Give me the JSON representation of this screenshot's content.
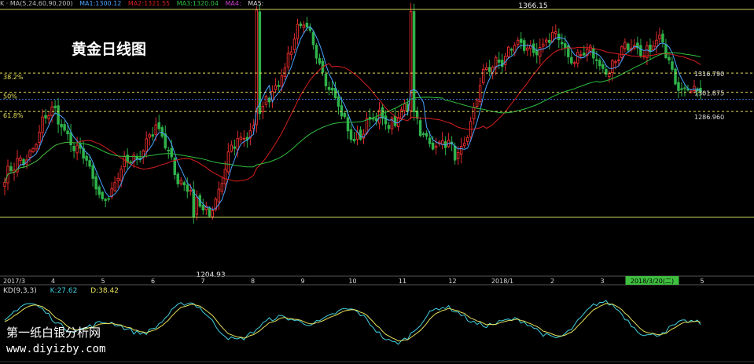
{
  "header": {
    "indicator": "K · MA(5,24,60,90,200)",
    "ma_labels": [
      "MA1:1300.12",
      "MA2:1321.55",
      "MA3:1320.04",
      "MA4:",
      "MA5:"
    ]
  },
  "title": "黄金日线图",
  "colors": {
    "background": "#000000",
    "up": "#e02b2b",
    "down": "#2fb24a",
    "ma1": "#4aa3ff",
    "ma2": "#d81e1e",
    "ma3": "#2fbf3f",
    "fib": "#e6e15a",
    "support": "#c8d25a",
    "current": "#3b6fd6",
    "kd_k": "#3fd0e0",
    "kd_d": "#e6e15a",
    "highlight": "#3fbf3f"
  },
  "fib_labels": {
    "r382": "38.2%",
    "r50": "50%",
    "r618": "61.8%"
  },
  "price_labels": {
    "high": "1366.15",
    "low": "1204.93",
    "p382": "1316.790",
    "p50": "1301.875",
    "p618": "1286.960"
  },
  "kd": {
    "label": "KD(9,3,3)",
    "k_label": "K:27.62",
    "d_label": "D:38.42"
  },
  "x_axis": {
    "labels": [
      "2017/3",
      "4",
      "5",
      "6",
      "7",
      "8",
      "9",
      "10",
      "11",
      "12",
      "2018/1",
      "2",
      "3",
      "2018/3/20(二)",
      "5"
    ],
    "highlight_index": 13
  },
  "watermark": {
    "line1": "第一纸白银分析网",
    "line2": "www.diyizby.com"
  },
  "chart_data": {
    "type": "candlestick",
    "title": "黄金日线图",
    "y_high": 1366.15,
    "y_low": 1204.93,
    "fib_levels": [
      {
        "label": "38.2%",
        "value": 1316.79
      },
      {
        "label": "50%",
        "value": 1301.875
      },
      {
        "label": "61.8%",
        "value": 1286.96
      }
    ],
    "close_trend": [
      [
        "2017-03",
        1235
      ],
      [
        "2017-04",
        1282
      ],
      [
        "2017-05",
        1225
      ],
      [
        "2017-06",
        1268
      ],
      [
        "2017-07",
        1212
      ],
      [
        "2017-08",
        1278
      ],
      [
        "2017-09",
        1348
      ],
      [
        "2017-10",
        1272
      ],
      [
        "2017-11",
        1285
      ],
      [
        "2017-12",
        1255
      ],
      [
        "2018-01",
        1332
      ],
      [
        "2018-02",
        1340
      ],
      [
        "2018-03",
        1325
      ],
      [
        "2018-04",
        1338
      ],
      [
        "2018-05",
        1298
      ]
    ],
    "kd": {
      "K": 27.62,
      "D": 38.42
    }
  }
}
